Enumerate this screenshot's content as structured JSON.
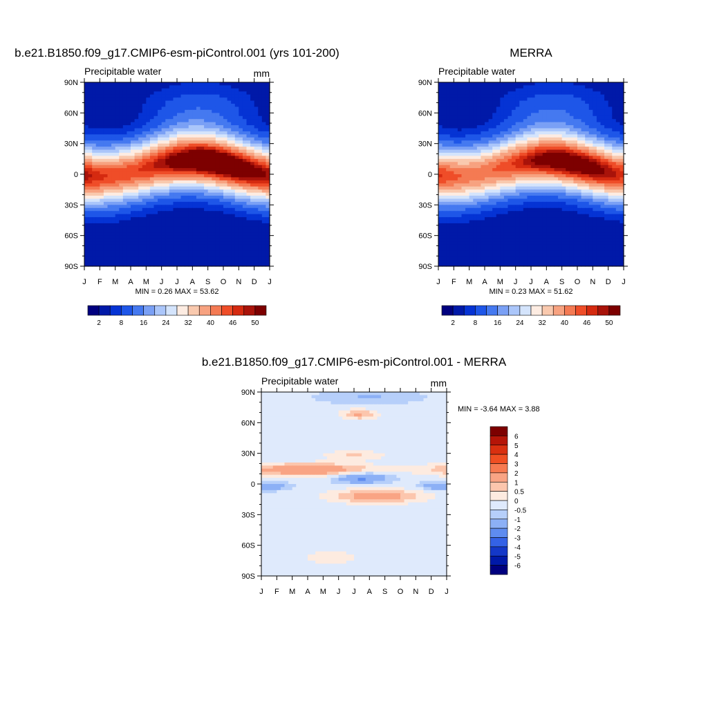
{
  "chart_data": [
    {
      "type": "heatmap",
      "title": "b.e21.B1850.f09_g17.CMIP6-esm-piControl.001 (yrs 101-200)",
      "subtitle_left": "Precipitable water",
      "subtitle_right": "mm",
      "x_tick_labels": [
        "J",
        "F",
        "M",
        "A",
        "M",
        "J",
        "J",
        "A",
        "S",
        "O",
        "N",
        "D",
        "J"
      ],
      "y_tick_labels": [
        "90N",
        "60N",
        "30N",
        "0",
        "30S",
        "60S",
        "90S"
      ],
      "ylim": [
        -90,
        90
      ],
      "stats_text": "MIN =   0.26 MAX =  53.62",
      "min": 0.26,
      "max": 53.62,
      "colorbar_orientation": "horizontal",
      "colorbar_labels": [
        "2",
        "8",
        "16",
        "24",
        "32",
        "40",
        "46",
        "50"
      ],
      "colorbar_colors": [
        "#00007f",
        "#0019a8",
        "#0533d4",
        "#1e56e8",
        "#4579f0",
        "#7aa0f5",
        "#abc6fa",
        "#d4e4fc",
        "#fdece2",
        "#f9c9ae",
        "#f7a280",
        "#f47a53",
        "#ef4d28",
        "#d52a10",
        "#a9130a",
        "#7d0000"
      ]
    },
    {
      "type": "heatmap",
      "title": "MERRA",
      "subtitle_left": "Precipitable water",
      "subtitle_right": "",
      "x_tick_labels": [
        "J",
        "F",
        "M",
        "A",
        "M",
        "J",
        "J",
        "A",
        "S",
        "O",
        "N",
        "D",
        "J"
      ],
      "y_tick_labels": [
        "90N",
        "60N",
        "30N",
        "0",
        "30S",
        "60S",
        "90S"
      ],
      "ylim": [
        -90,
        90
      ],
      "stats_text": "MIN =   0.23 MAX =  51.62",
      "min": 0.23,
      "max": 51.62,
      "colorbar_orientation": "horizontal",
      "colorbar_labels": [
        "2",
        "8",
        "16",
        "24",
        "32",
        "40",
        "46",
        "50"
      ],
      "colorbar_colors": [
        "#00007f",
        "#0019a8",
        "#0533d4",
        "#1e56e8",
        "#4579f0",
        "#7aa0f5",
        "#abc6fa",
        "#d4e4fc",
        "#fdece2",
        "#f9c9ae",
        "#f7a280",
        "#f47a53",
        "#ef4d28",
        "#d52a10",
        "#a9130a",
        "#7d0000"
      ]
    },
    {
      "type": "heatmap",
      "title": "b.e21.B1850.f09_g17.CMIP6-esm-piControl.001 - MERRA",
      "subtitle_left": "Precipitable water",
      "subtitle_right": "mm",
      "x_tick_labels": [
        "J",
        "F",
        "M",
        "A",
        "M",
        "J",
        "J",
        "A",
        "S",
        "O",
        "N",
        "D",
        "J"
      ],
      "y_tick_labels": [
        "90N",
        "60N",
        "30N",
        "0",
        "30S",
        "60S",
        "90S"
      ],
      "ylim": [
        -90,
        90
      ],
      "stats_text": "MIN =  -3.64 MAX =   3.88",
      "min": -3.64,
      "max": 3.88,
      "colorbar_orientation": "vertical",
      "colorbar_labels": [
        "6",
        "5",
        "4",
        "3",
        "2",
        "1",
        "0.5",
        "0",
        "-0.5",
        "-1",
        "-2",
        "-3",
        "-4",
        "-5",
        "-6"
      ],
      "colorbar_colors": [
        "#7d0000",
        "#b51508",
        "#d93010",
        "#f04f22",
        "#f77a50",
        "#f9a484",
        "#fcc6ad",
        "#fdebe0",
        "#dfeafc",
        "#b6cffa",
        "#8cb0f6",
        "#5e8cf0",
        "#3462e6",
        "#1438c8",
        "#0019a8",
        "#00007f"
      ]
    }
  ]
}
